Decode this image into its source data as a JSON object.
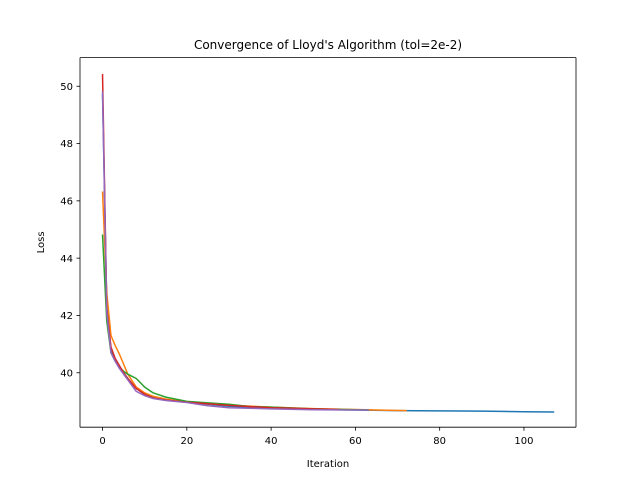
{
  "chart_data": {
    "type": "line",
    "title": "Convergence of Lloyd's Algorithm (tol=2e-2)",
    "xlabel": "Iteration",
    "ylabel": "Loss",
    "xlim": [
      -5.35,
      112.35
    ],
    "ylim": [
      38.1,
      51.0
    ],
    "xticks": [
      0,
      20,
      40,
      60,
      80,
      100
    ],
    "yticks": [
      40,
      42,
      44,
      46,
      48,
      50
    ],
    "grid": false,
    "colors": [
      "#1f77b4",
      "#ff7f0e",
      "#2ca02c",
      "#d62728",
      "#9467bd"
    ],
    "series": [
      {
        "x": [
          0,
          1,
          2,
          3,
          4,
          5,
          6,
          8,
          10,
          12,
          15,
          20,
          25,
          30,
          35,
          40,
          50,
          60,
          70,
          80,
          90,
          100,
          107
        ],
        "y": [
          49.7,
          42.4,
          40.8,
          40.45,
          40.2,
          40.0,
          39.8,
          39.45,
          39.25,
          39.15,
          39.05,
          38.97,
          38.9,
          38.83,
          38.79,
          38.76,
          38.72,
          38.7,
          38.68,
          38.67,
          38.66,
          38.64,
          38.63
        ]
      },
      {
        "x": [
          0,
          1,
          2,
          3,
          4,
          5,
          6,
          8,
          10,
          12,
          15,
          20,
          25,
          30,
          40,
          50,
          60,
          65,
          72
        ],
        "y": [
          46.3,
          42.8,
          41.3,
          40.95,
          40.65,
          40.3,
          39.95,
          39.5,
          39.3,
          39.18,
          39.08,
          38.98,
          38.92,
          38.87,
          38.8,
          38.75,
          38.72,
          38.7,
          38.68
        ]
      },
      {
        "x": [
          0,
          1,
          2,
          3,
          4,
          5,
          6,
          8,
          10,
          12,
          15,
          20,
          25,
          30,
          35,
          40,
          50,
          60,
          63
        ],
        "y": [
          44.8,
          41.8,
          40.7,
          40.4,
          40.2,
          40.05,
          39.95,
          39.8,
          39.5,
          39.3,
          39.15,
          39.0,
          38.95,
          38.9,
          38.82,
          38.8,
          38.74,
          38.71,
          38.7
        ]
      },
      {
        "x": [
          0,
          1,
          2,
          3,
          4,
          5,
          6,
          8,
          10,
          12,
          15,
          20,
          25,
          30,
          35,
          40,
          45,
          50,
          56
        ],
        "y": [
          50.4,
          42.2,
          40.9,
          40.5,
          40.25,
          40.0,
          39.8,
          39.45,
          39.25,
          39.12,
          39.05,
          38.97,
          38.92,
          38.86,
          38.82,
          38.78,
          38.76,
          38.74,
          38.72
        ]
      },
      {
        "x": [
          0,
          1,
          2,
          3,
          4,
          5,
          6,
          8,
          10,
          12,
          15,
          20,
          25,
          30,
          40,
          50,
          60,
          63
        ],
        "y": [
          49.8,
          42.1,
          40.7,
          40.4,
          40.15,
          39.95,
          39.75,
          39.35,
          39.2,
          39.1,
          39.03,
          38.96,
          38.85,
          38.78,
          38.74,
          38.71,
          38.7,
          38.7
        ]
      }
    ]
  }
}
